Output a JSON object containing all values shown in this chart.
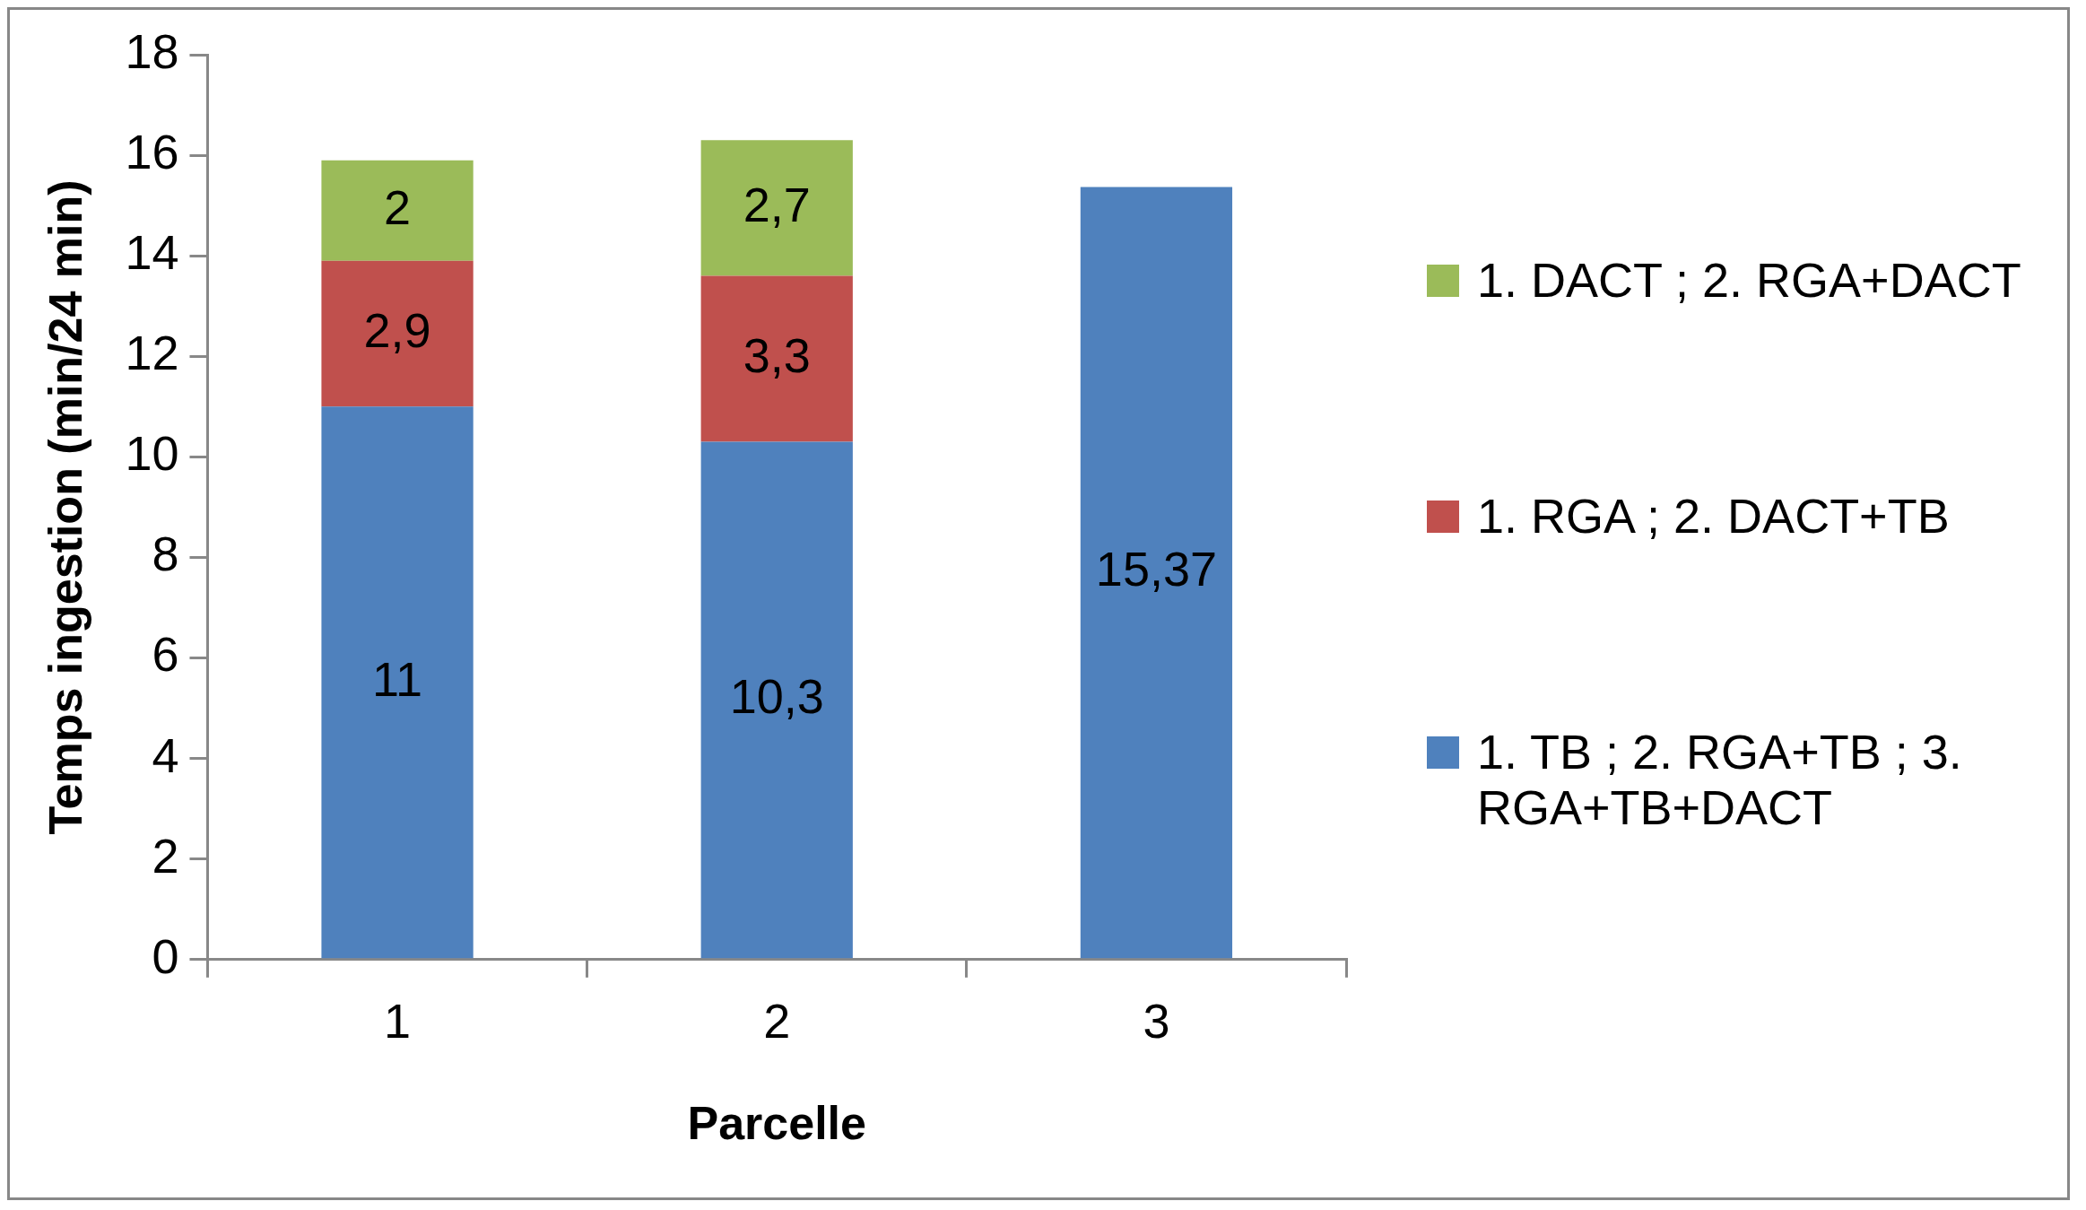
{
  "chart_data": {
    "type": "bar",
    "stacked": true,
    "xlabel": "Parcelle",
    "ylabel": "Temps ingestion (min/24 min)",
    "categories": [
      "1",
      "2",
      "3"
    ],
    "ylim": [
      0,
      18
    ],
    "yticks": [
      0,
      2,
      4,
      6,
      8,
      10,
      12,
      14,
      16,
      18
    ],
    "grid": false,
    "legend": "right",
    "series": [
      {
        "name": "1. TB ; 2. RGA+TB ; 3. RGA+TB+DACT",
        "color": "#4f81bd",
        "values": [
          11,
          10.3,
          15.37
        ],
        "value_labels": [
          "11",
          "10,3",
          "15,37"
        ]
      },
      {
        "name": "1. RGA ; 2. DACT+TB",
        "color": "#c0504d",
        "values": [
          2.9,
          3.3,
          null
        ],
        "value_labels": [
          "2,9",
          "3,3",
          null
        ]
      },
      {
        "name": "1. DACT ; 2. RGA+DACT",
        "color": "#9bbb59",
        "values": [
          2,
          2.7,
          null
        ],
        "value_labels": [
          "2",
          "2,7",
          null
        ]
      }
    ]
  }
}
